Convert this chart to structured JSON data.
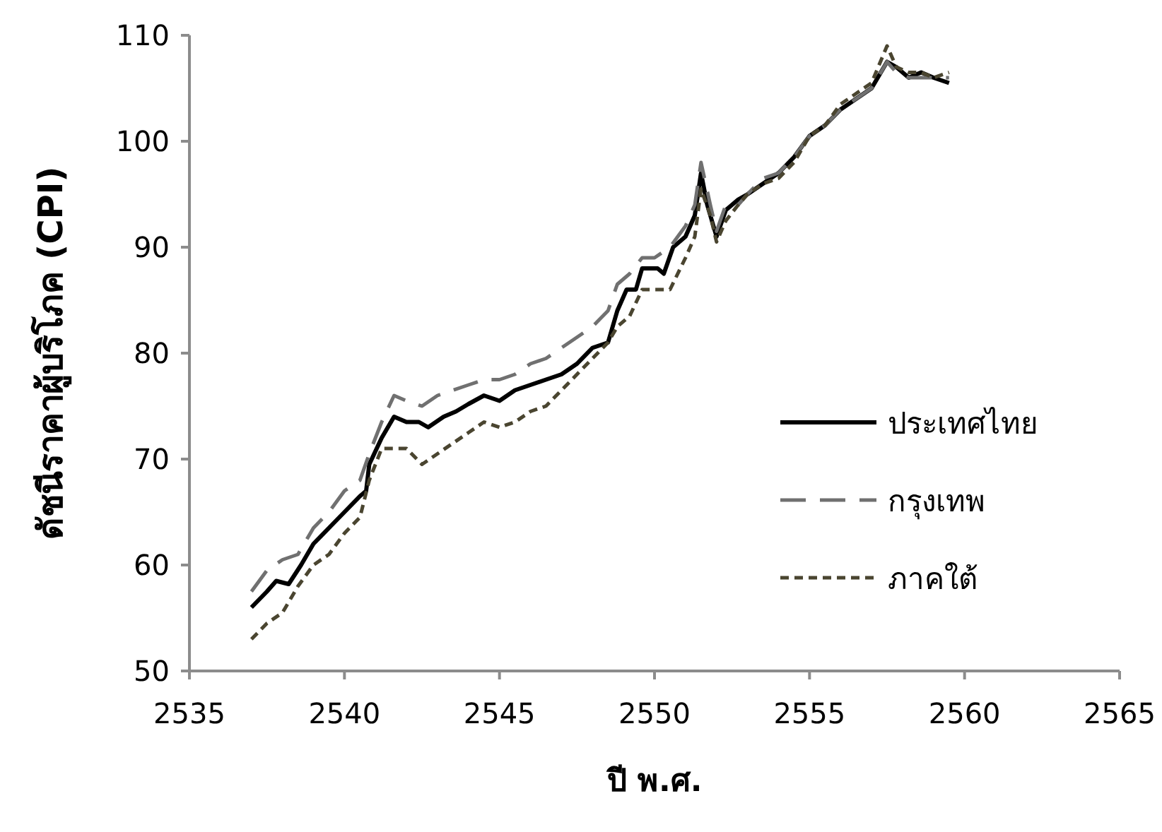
{
  "chart_data": {
    "type": "line",
    "xlabel": "ปี พ.ศ.",
    "ylabel": "ดัชนีราคาผู้บริโภค (CPI)",
    "xlim": [
      2535,
      2565
    ],
    "xticks": [
      2535,
      2540,
      2545,
      2550,
      2555,
      2560,
      2565
    ],
    "ylim": [
      50,
      110
    ],
    "yticks": [
      50,
      60,
      70,
      80,
      90,
      100,
      110
    ],
    "grid": false,
    "legend": "right",
    "marker": "none",
    "series": [
      {
        "name": "ประเทศไทย",
        "color": "#000000",
        "line_style": "solid",
        "x": [
          2537,
          2537.5,
          2537.8,
          2538.2,
          2538.6,
          2539,
          2539.5,
          2540,
          2540.5,
          2540.7,
          2540.8,
          2541.2,
          2541.6,
          2542,
          2542.4,
          2542.7,
          2543.2,
          2543.6,
          2544,
          2544.5,
          2545,
          2545.5,
          2546,
          2546.5,
          2547,
          2547.5,
          2548,
          2548.5,
          2548.8,
          2549.1,
          2549.4,
          2549.6,
          2550.1,
          2550.3,
          2550.6,
          2551,
          2551.3,
          2551.5,
          2551.7,
          2552,
          2552.3,
          2552.7,
          2553,
          2553.5,
          2554,
          2554.5,
          2555,
          2555.5,
          2556,
          2556.5,
          2557,
          2557.5,
          2557.8,
          2558.2,
          2558.6,
          2559,
          2559.5
        ],
        "values": [
          56,
          57.5,
          58.5,
          58.2,
          60,
          62,
          63.5,
          65,
          66.5,
          67,
          69.5,
          72,
          74,
          73.5,
          73.5,
          73,
          74,
          74.5,
          75.2,
          76,
          75.5,
          76.5,
          77,
          77.5,
          78,
          79,
          80.5,
          81,
          84,
          86,
          86,
          88,
          88,
          87.5,
          90,
          91,
          93,
          97,
          94,
          91,
          93.5,
          94.5,
          95,
          96,
          97,
          98.5,
          100.5,
          101.5,
          103,
          104,
          105,
          107.5,
          107,
          106,
          106.5,
          106,
          105.5
        ]
      },
      {
        "name": "กรุงเทพ",
        "color": "#707070",
        "line_style": "dashed",
        "x": [
          2537,
          2537.5,
          2538,
          2538.5,
          2539,
          2539.5,
          2540,
          2540.5,
          2540.8,
          2541.2,
          2541.6,
          2542,
          2542.5,
          2543,
          2543.5,
          2544,
          2544.5,
          2545,
          2545.5,
          2546,
          2546.5,
          2547,
          2547.5,
          2548,
          2548.5,
          2548.8,
          2549.2,
          2549.6,
          2550,
          2550.5,
          2551,
          2551.3,
          2551.5,
          2551.8,
          2552,
          2552.3,
          2552.7,
          2553,
          2553.5,
          2554,
          2554.5,
          2555,
          2555.5,
          2556,
          2556.5,
          2557,
          2557.5,
          2557.8,
          2558.2,
          2558.6,
          2559,
          2559.5
        ],
        "values": [
          57.5,
          59.5,
          60.5,
          61,
          63.5,
          65,
          67,
          68,
          70.5,
          73.5,
          76,
          75.5,
          75,
          76,
          76.5,
          77,
          77.5,
          77.5,
          78,
          79,
          79.5,
          80.5,
          81.5,
          82.5,
          84,
          86.5,
          87.5,
          89,
          89,
          90,
          92,
          94,
          98,
          94,
          91.5,
          94,
          94,
          95,
          96.5,
          97,
          98.5,
          100.5,
          101.5,
          103,
          104,
          105,
          107.5,
          106.5,
          106,
          106,
          106,
          106
        ]
      },
      {
        "name": "ภาคใต้",
        "color": "#4a4530",
        "line_style": "dotted",
        "x": [
          2537,
          2537.5,
          2538,
          2538.5,
          2539,
          2539.5,
          2540,
          2540.5,
          2540.8,
          2541.2,
          2541.6,
          2542,
          2542.5,
          2543,
          2543.5,
          2544,
          2544.5,
          2545,
          2545.5,
          2546,
          2546.5,
          2547,
          2547.5,
          2548,
          2548.5,
          2548.8,
          2549.2,
          2549.6,
          2550,
          2550.5,
          2551,
          2551.3,
          2551.5,
          2551.8,
          2552,
          2552.3,
          2552.7,
          2553,
          2553.5,
          2554,
          2554.5,
          2555,
          2555.5,
          2556,
          2556.5,
          2557,
          2557.5,
          2557.8,
          2558.2,
          2558.6,
          2559,
          2559.5
        ],
        "values": [
          53,
          54.5,
          55.5,
          58,
          60,
          61,
          63,
          64.5,
          68,
          71,
          71,
          71,
          69.5,
          70.5,
          71.5,
          72.5,
          73.5,
          73,
          73.5,
          74.5,
          75,
          76.5,
          78,
          79.5,
          81,
          82.5,
          83.5,
          86,
          86,
          86,
          89,
          91,
          95.5,
          93,
          90.5,
          92.5,
          94,
          95,
          96,
          96.5,
          98,
          100.5,
          101.5,
          103.5,
          104.5,
          105.5,
          109,
          107,
          106.5,
          106.5,
          106,
          106.5
        ]
      }
    ]
  }
}
